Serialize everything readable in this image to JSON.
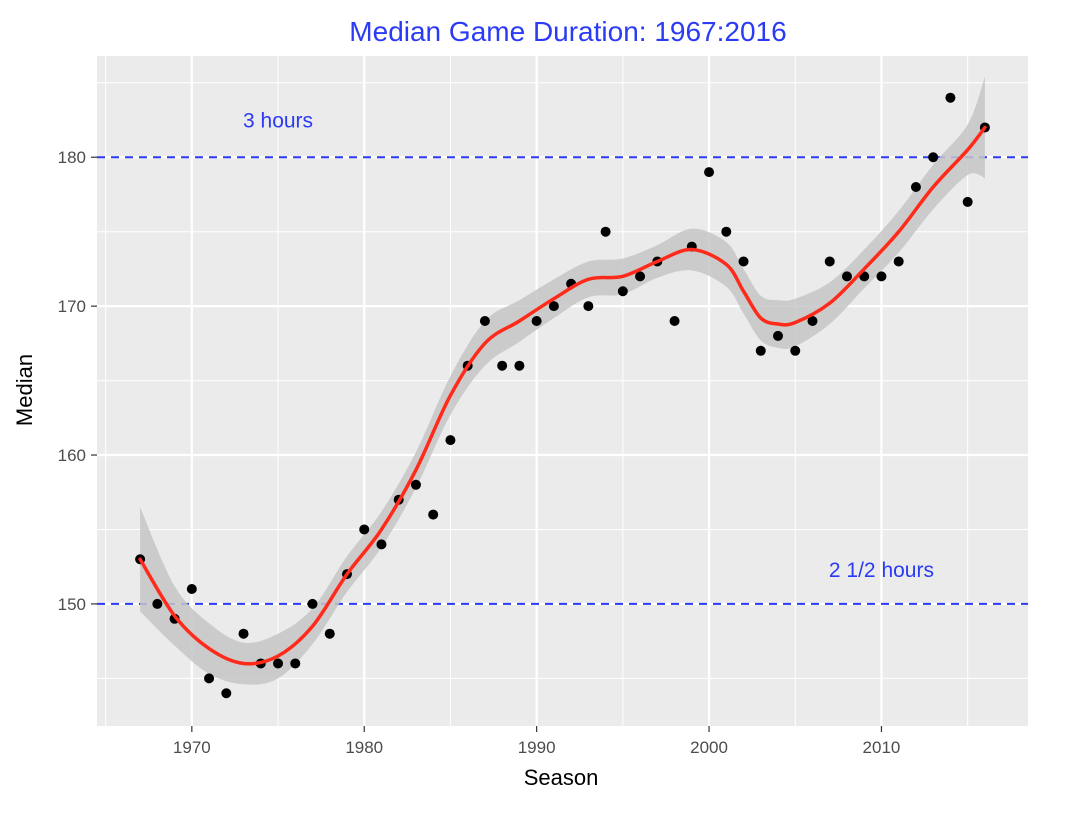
{
  "chart_data": {
    "type": "scatter",
    "title": "Median Game Duration:  1967:2016",
    "xlabel": "Season",
    "ylabel": "Median",
    "xlim": [
      1964.5,
      2018.5
    ],
    "ylim": [
      141.8,
      186.8
    ],
    "x_ticks": [
      1970,
      1980,
      1990,
      2000,
      2010
    ],
    "y_ticks": [
      150,
      160,
      170,
      180
    ],
    "grid": true,
    "legend": "none",
    "series": [
      {
        "points": [
          [
            1967,
            153
          ],
          [
            1968,
            150
          ],
          [
            1969,
            149
          ],
          [
            1970,
            151
          ],
          [
            1971,
            145
          ],
          [
            1972,
            144
          ],
          [
            1973,
            148
          ],
          [
            1974,
            146
          ],
          [
            1975,
            146
          ],
          [
            1976,
            146
          ],
          [
            1977,
            150
          ],
          [
            1978,
            148
          ],
          [
            1979,
            152
          ],
          [
            1980,
            155
          ],
          [
            1981,
            154
          ],
          [
            1982,
            157
          ],
          [
            1983,
            158
          ],
          [
            1984,
            156
          ],
          [
            1985,
            161
          ],
          [
            1986,
            166
          ],
          [
            1987,
            169
          ],
          [
            1988,
            166
          ],
          [
            1989,
            166
          ],
          [
            1990,
            169
          ],
          [
            1991,
            170
          ],
          [
            1992,
            171.5
          ],
          [
            1993,
            170
          ],
          [
            1994,
            175
          ],
          [
            1995,
            171
          ],
          [
            1996,
            172
          ],
          [
            1997,
            173
          ],
          [
            1998,
            169
          ],
          [
            1999,
            174
          ],
          [
            2000,
            179
          ],
          [
            2001,
            175
          ],
          [
            2002,
            173
          ],
          [
            2003,
            167
          ],
          [
            2004,
            168
          ],
          [
            2005,
            167
          ],
          [
            2006,
            169
          ],
          [
            2007,
            173
          ],
          [
            2008,
            172
          ],
          [
            2009,
            172
          ],
          [
            2010,
            172
          ],
          [
            2011,
            173
          ],
          [
            2012,
            178
          ],
          [
            2013,
            180
          ],
          [
            2014,
            184
          ],
          [
            2015,
            177
          ],
          [
            2016,
            182
          ]
        ]
      }
    ],
    "smooth": {
      "x": [
        1967,
        1969,
        1971,
        1973,
        1975,
        1977,
        1979,
        1981,
        1983,
        1985,
        1987,
        1989,
        1991,
        1993,
        1995,
        1997,
        1999,
        2001,
        2002,
        2003,
        2004,
        2005,
        2007,
        2009,
        2011,
        2013,
        2015,
        2016
      ],
      "y": [
        153,
        149.2,
        147,
        146,
        146.5,
        148.5,
        152,
        155,
        159,
        164,
        167.5,
        169,
        170.5,
        171.8,
        172,
        173,
        173.8,
        172.8,
        171,
        169.2,
        168.8,
        168.9,
        170.2,
        172.5,
        175,
        178,
        180.5,
        182
      ],
      "lower": [
        149.5,
        147.2,
        145.3,
        144.6,
        145,
        147.3,
        150.8,
        153.8,
        157.8,
        162.7,
        166,
        167.6,
        169.2,
        170.6,
        170.8,
        171.9,
        172.4,
        171.3,
        169.5,
        167.7,
        167.2,
        167.3,
        168.8,
        171.2,
        173.6,
        176.5,
        178.8,
        178.6
      ],
      "upper": [
        156.5,
        151.2,
        148.7,
        147.4,
        148,
        149.7,
        153.2,
        156.2,
        160.2,
        165.3,
        169,
        170.4,
        171.8,
        173,
        173.2,
        174.1,
        175.2,
        174.3,
        172.5,
        170.7,
        170.4,
        170.5,
        171.6,
        173.8,
        176.4,
        179.5,
        182.2,
        185.4
      ]
    },
    "hlines": [
      {
        "y": 180,
        "label": "3 hours",
        "label_x": 1975,
        "label_y": 182
      },
      {
        "y": 150,
        "label": "2 1/2 hours",
        "label_x": 2010,
        "label_y": 151.8
      }
    ]
  },
  "colors": {
    "title": "#2b3bf5",
    "panel": "#ebebeb",
    "grid": "#ffffff",
    "points": "#000000",
    "smooth_line": "#ff2a1a",
    "ribbon": "#c6c6c6",
    "hline": "#2b3bf5",
    "annotation": "#2b3bf5"
  }
}
